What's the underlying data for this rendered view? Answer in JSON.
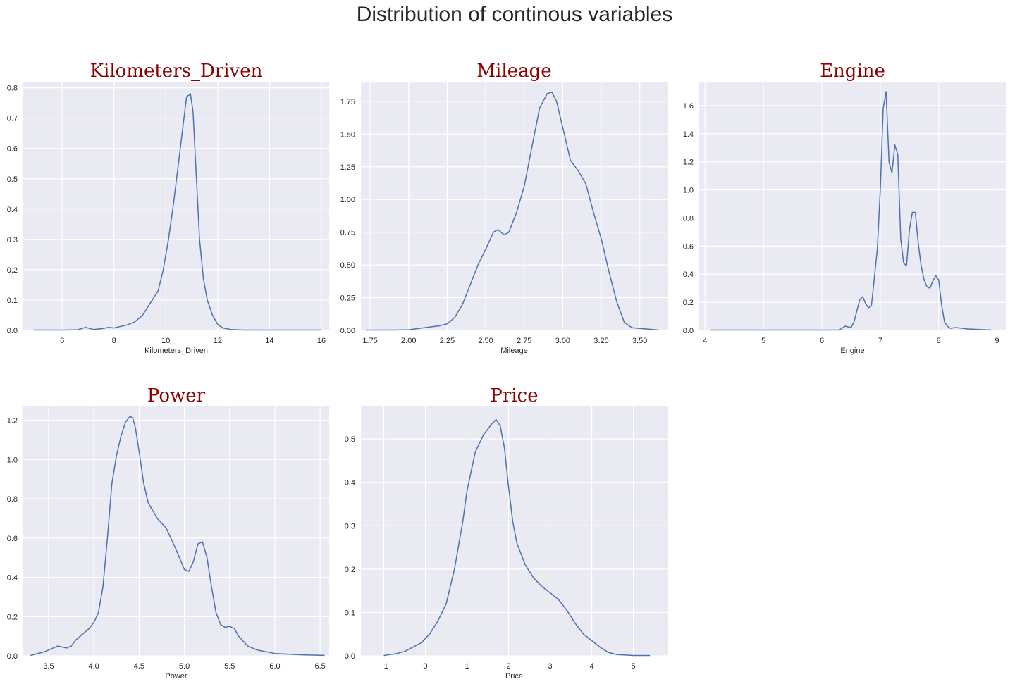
{
  "figure": {
    "title": "Distribution of continous variables"
  },
  "chart_data": [
    {
      "type": "line",
      "title": "Kilometers_Driven",
      "xlabel": "Kilometers_Driven",
      "ylabel": "",
      "xlim": [
        4.5,
        16.3
      ],
      "ylim": [
        0,
        0.82
      ],
      "xticks": [
        6,
        8,
        10,
        12,
        14,
        16
      ],
      "yticks": [
        0.0,
        0.1,
        0.2,
        0.3,
        0.4,
        0.5,
        0.6,
        0.7,
        0.8
      ],
      "ytick_decimals": 1,
      "grid": true,
      "x": [
        4.9,
        6.0,
        6.6,
        6.9,
        7.2,
        7.5,
        7.8,
        8.0,
        8.2,
        8.5,
        8.8,
        9.1,
        9.4,
        9.7,
        9.9,
        10.1,
        10.3,
        10.5,
        10.7,
        10.8,
        10.95,
        11.05,
        11.15,
        11.3,
        11.45,
        11.6,
        11.8,
        12.0,
        12.2,
        12.5,
        13.0,
        14.0,
        16.0
      ],
      "y": [
        0.001,
        0.001,
        0.002,
        0.01,
        0.003,
        0.005,
        0.01,
        0.008,
        0.012,
        0.018,
        0.028,
        0.05,
        0.09,
        0.13,
        0.2,
        0.3,
        0.42,
        0.56,
        0.7,
        0.77,
        0.78,
        0.72,
        0.55,
        0.3,
        0.17,
        0.1,
        0.05,
        0.02,
        0.008,
        0.003,
        0.001,
        0.0005,
        0.0002
      ]
    },
    {
      "type": "line",
      "title": "Mileage",
      "xlabel": "Mileage",
      "ylabel": "",
      "xlim": [
        1.69,
        3.68
      ],
      "ylim": [
        0,
        1.9
      ],
      "xticks": [
        1.75,
        2.0,
        2.25,
        2.5,
        2.75,
        3.0,
        3.25,
        3.5
      ],
      "yticks": [
        0.0,
        0.25,
        0.5,
        0.75,
        1.0,
        1.25,
        1.5,
        1.75
      ],
      "ytick_decimals": 2,
      "grid": true,
      "x": [
        1.72,
        1.9,
        2.0,
        2.1,
        2.2,
        2.25,
        2.3,
        2.35,
        2.4,
        2.45,
        2.5,
        2.55,
        2.58,
        2.62,
        2.65,
        2.7,
        2.75,
        2.8,
        2.85,
        2.9,
        2.93,
        2.96,
        3.0,
        3.05,
        3.1,
        3.15,
        3.2,
        3.25,
        3.3,
        3.35,
        3.4,
        3.45,
        3.5,
        3.55,
        3.62
      ],
      "y": [
        0.0,
        0.002,
        0.005,
        0.02,
        0.035,
        0.05,
        0.1,
        0.2,
        0.35,
        0.5,
        0.62,
        0.75,
        0.77,
        0.73,
        0.75,
        0.9,
        1.1,
        1.4,
        1.7,
        1.81,
        1.82,
        1.75,
        1.55,
        1.3,
        1.22,
        1.12,
        0.9,
        0.7,
        0.45,
        0.22,
        0.06,
        0.02,
        0.015,
        0.01,
        0.002
      ]
    },
    {
      "type": "line",
      "title": "Engine",
      "xlabel": "Engine",
      "ylabel": "",
      "xlim": [
        3.9,
        9.15
      ],
      "ylim": [
        0,
        1.77
      ],
      "xticks": [
        4,
        5,
        6,
        7,
        8,
        9
      ],
      "yticks": [
        0.0,
        0.2,
        0.4,
        0.6,
        0.8,
        1.0,
        1.2,
        1.4,
        1.6
      ],
      "ytick_decimals": 1,
      "grid": true,
      "x": [
        4.1,
        5.0,
        6.0,
        6.3,
        6.4,
        6.5,
        6.55,
        6.6,
        6.65,
        6.7,
        6.75,
        6.8,
        6.85,
        6.9,
        6.95,
        7.0,
        7.05,
        7.1,
        7.15,
        7.2,
        7.25,
        7.3,
        7.35,
        7.4,
        7.45,
        7.5,
        7.55,
        7.6,
        7.65,
        7.7,
        7.75,
        7.8,
        7.85,
        7.9,
        7.95,
        8.0,
        8.05,
        8.1,
        8.15,
        8.2,
        8.3,
        8.5,
        8.9
      ],
      "y": [
        0.0,
        0.0,
        0.0,
        0.003,
        0.03,
        0.02,
        0.06,
        0.14,
        0.22,
        0.24,
        0.19,
        0.16,
        0.18,
        0.38,
        0.58,
        1.0,
        1.58,
        1.7,
        1.2,
        1.12,
        1.32,
        1.25,
        0.65,
        0.48,
        0.46,
        0.72,
        0.84,
        0.84,
        0.62,
        0.46,
        0.36,
        0.31,
        0.3,
        0.35,
        0.39,
        0.36,
        0.18,
        0.06,
        0.03,
        0.015,
        0.02,
        0.01,
        0.0
      ]
    },
    {
      "type": "line",
      "title": "Power",
      "xlabel": "Power",
      "ylabel": "",
      "xlim": [
        3.22,
        6.6
      ],
      "ylim": [
        0,
        1.27
      ],
      "xticks": [
        3.5,
        4.0,
        4.5,
        5.0,
        5.5,
        6.0,
        6.5
      ],
      "yticks": [
        0.0,
        0.2,
        0.4,
        0.6,
        0.8,
        1.0,
        1.2
      ],
      "ytick_decimals": 1,
      "grid": true,
      "x": [
        3.3,
        3.45,
        3.55,
        3.6,
        3.7,
        3.75,
        3.8,
        3.85,
        3.9,
        3.95,
        4.0,
        4.05,
        4.1,
        4.15,
        4.2,
        4.25,
        4.3,
        4.35,
        4.4,
        4.43,
        4.46,
        4.5,
        4.55,
        4.6,
        4.7,
        4.8,
        4.9,
        5.0,
        5.05,
        5.1,
        5.15,
        5.2,
        5.25,
        5.3,
        5.35,
        5.4,
        5.45,
        5.5,
        5.55,
        5.6,
        5.7,
        5.8,
        6.0,
        6.3,
        6.55
      ],
      "y": [
        0.0,
        0.02,
        0.04,
        0.05,
        0.04,
        0.05,
        0.08,
        0.1,
        0.12,
        0.14,
        0.17,
        0.22,
        0.35,
        0.6,
        0.88,
        1.02,
        1.12,
        1.19,
        1.22,
        1.21,
        1.16,
        1.04,
        0.88,
        0.78,
        0.7,
        0.65,
        0.55,
        0.44,
        0.43,
        0.48,
        0.57,
        0.58,
        0.5,
        0.35,
        0.22,
        0.16,
        0.145,
        0.15,
        0.14,
        0.1,
        0.05,
        0.03,
        0.012,
        0.005,
        0.002
      ]
    },
    {
      "type": "line",
      "title": "Price",
      "xlabel": "Price",
      "ylabel": "",
      "xlim": [
        -1.55,
        5.82
      ],
      "ylim": [
        0,
        0.575
      ],
      "xticks": [
        -1,
        0,
        1,
        2,
        3,
        4,
        5
      ],
      "yticks": [
        0.0,
        0.1,
        0.2,
        0.3,
        0.4,
        0.5
      ],
      "ytick_decimals": 1,
      "grid": true,
      "x": [
        -1.0,
        -0.7,
        -0.5,
        -0.3,
        -0.1,
        0.1,
        0.3,
        0.5,
        0.7,
        0.9,
        1.0,
        1.2,
        1.4,
        1.6,
        1.7,
        1.8,
        1.9,
        2.0,
        2.1,
        2.2,
        2.4,
        2.6,
        2.8,
        3.0,
        3.2,
        3.4,
        3.6,
        3.8,
        4.0,
        4.2,
        4.4,
        4.6,
        5.0,
        5.4
      ],
      "y": [
        0.0,
        0.005,
        0.01,
        0.02,
        0.03,
        0.05,
        0.08,
        0.12,
        0.2,
        0.31,
        0.38,
        0.47,
        0.51,
        0.535,
        0.545,
        0.53,
        0.48,
        0.39,
        0.31,
        0.26,
        0.21,
        0.18,
        0.16,
        0.145,
        0.13,
        0.105,
        0.075,
        0.05,
        0.035,
        0.02,
        0.008,
        0.003,
        0.0005,
        0.0
      ]
    }
  ]
}
